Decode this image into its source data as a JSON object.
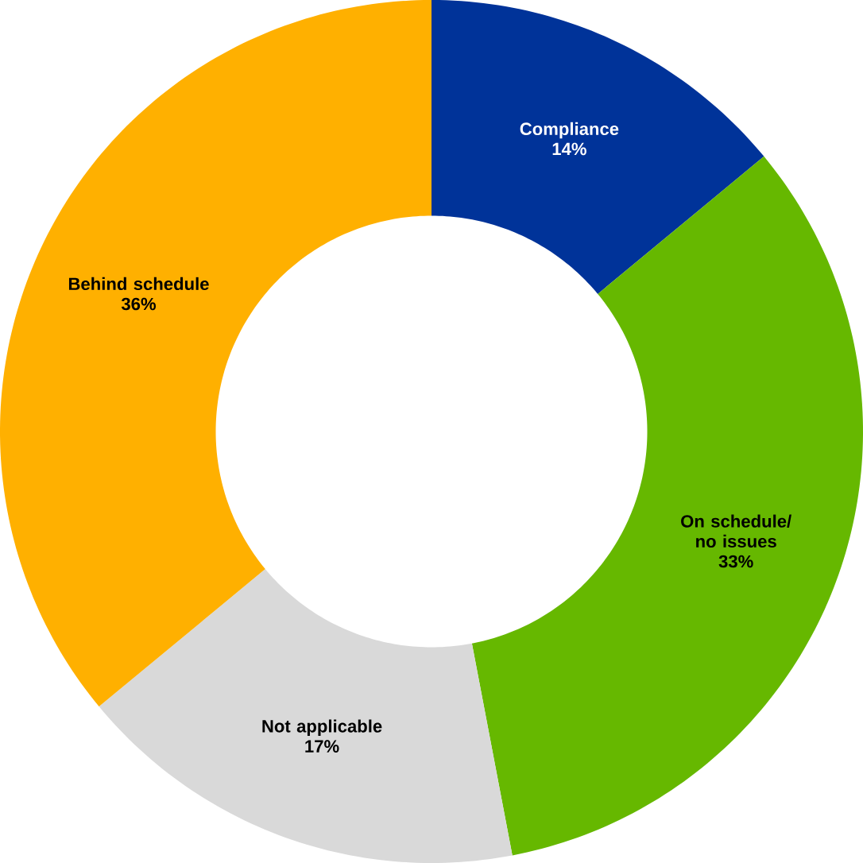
{
  "chart_data": {
    "type": "donut",
    "categories": [
      "Compliance",
      "On schedule/ no issues",
      "Not applicable",
      "Behind schedule"
    ],
    "values": [
      14,
      33,
      17,
      36
    ],
    "value_labels": [
      "14%",
      "33%",
      "17%",
      "36%"
    ],
    "colors": [
      "#003399",
      "#66b800",
      "#d9d9d9",
      "#ffb000"
    ],
    "legend": false
  }
}
